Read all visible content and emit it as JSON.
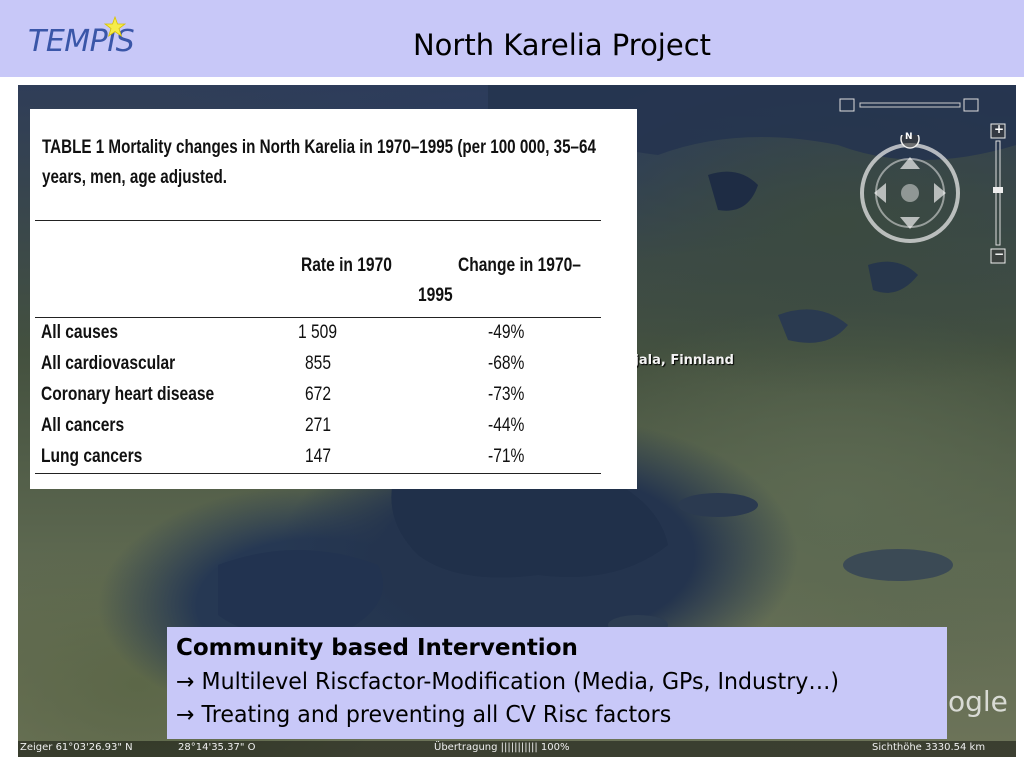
{
  "header": {
    "logo_text": "TEMPIS",
    "title": "North Karelia Project"
  },
  "map": {
    "place_label": "rjala, Finnland",
    "watermark": "ogle",
    "status": {
      "lat": "Zeiger  61°03'26.93\" N",
      "lon": "28°14'35.37\" O",
      "streaming": "Übertragung ||||||||||| 100%",
      "eye_alt": "Sichthöhe   3330.54 km"
    },
    "controls": {
      "north_label": "N",
      "zoom_in": "+",
      "zoom_out": "−"
    }
  },
  "table": {
    "caption": "TABLE 1    Mortality changes in North Karelia in 1970–1995 (per 100 000, 35–64 years,  men, age adjusted.",
    "col_rate": "Rate in 1970",
    "col_change_line1": "Change in 1970–",
    "col_change_line2": "1995",
    "rows": [
      {
        "label": "All causes",
        "rate": "1 509",
        "change": "-49%"
      },
      {
        "label": "All cardiovascular",
        "rate": "855",
        "change": "-68%"
      },
      {
        "label": "Coronary heart disease",
        "rate": "672",
        "change": "-73%"
      },
      {
        "label": "All cancers",
        "rate": "271",
        "change": "-44%"
      },
      {
        "label": "Lung cancers",
        "rate": "147",
        "change": "-71%"
      }
    ]
  },
  "intervention": {
    "title": "Community based Intervention",
    "line1": "→ Multilevel Riscfactor-Modification (Media, GPs, Industry…)",
    "line2": "→ Treating and preventing all CV Risc factors"
  },
  "colors": {
    "band": "#c8c8f8",
    "logo": "#3a56a8"
  }
}
